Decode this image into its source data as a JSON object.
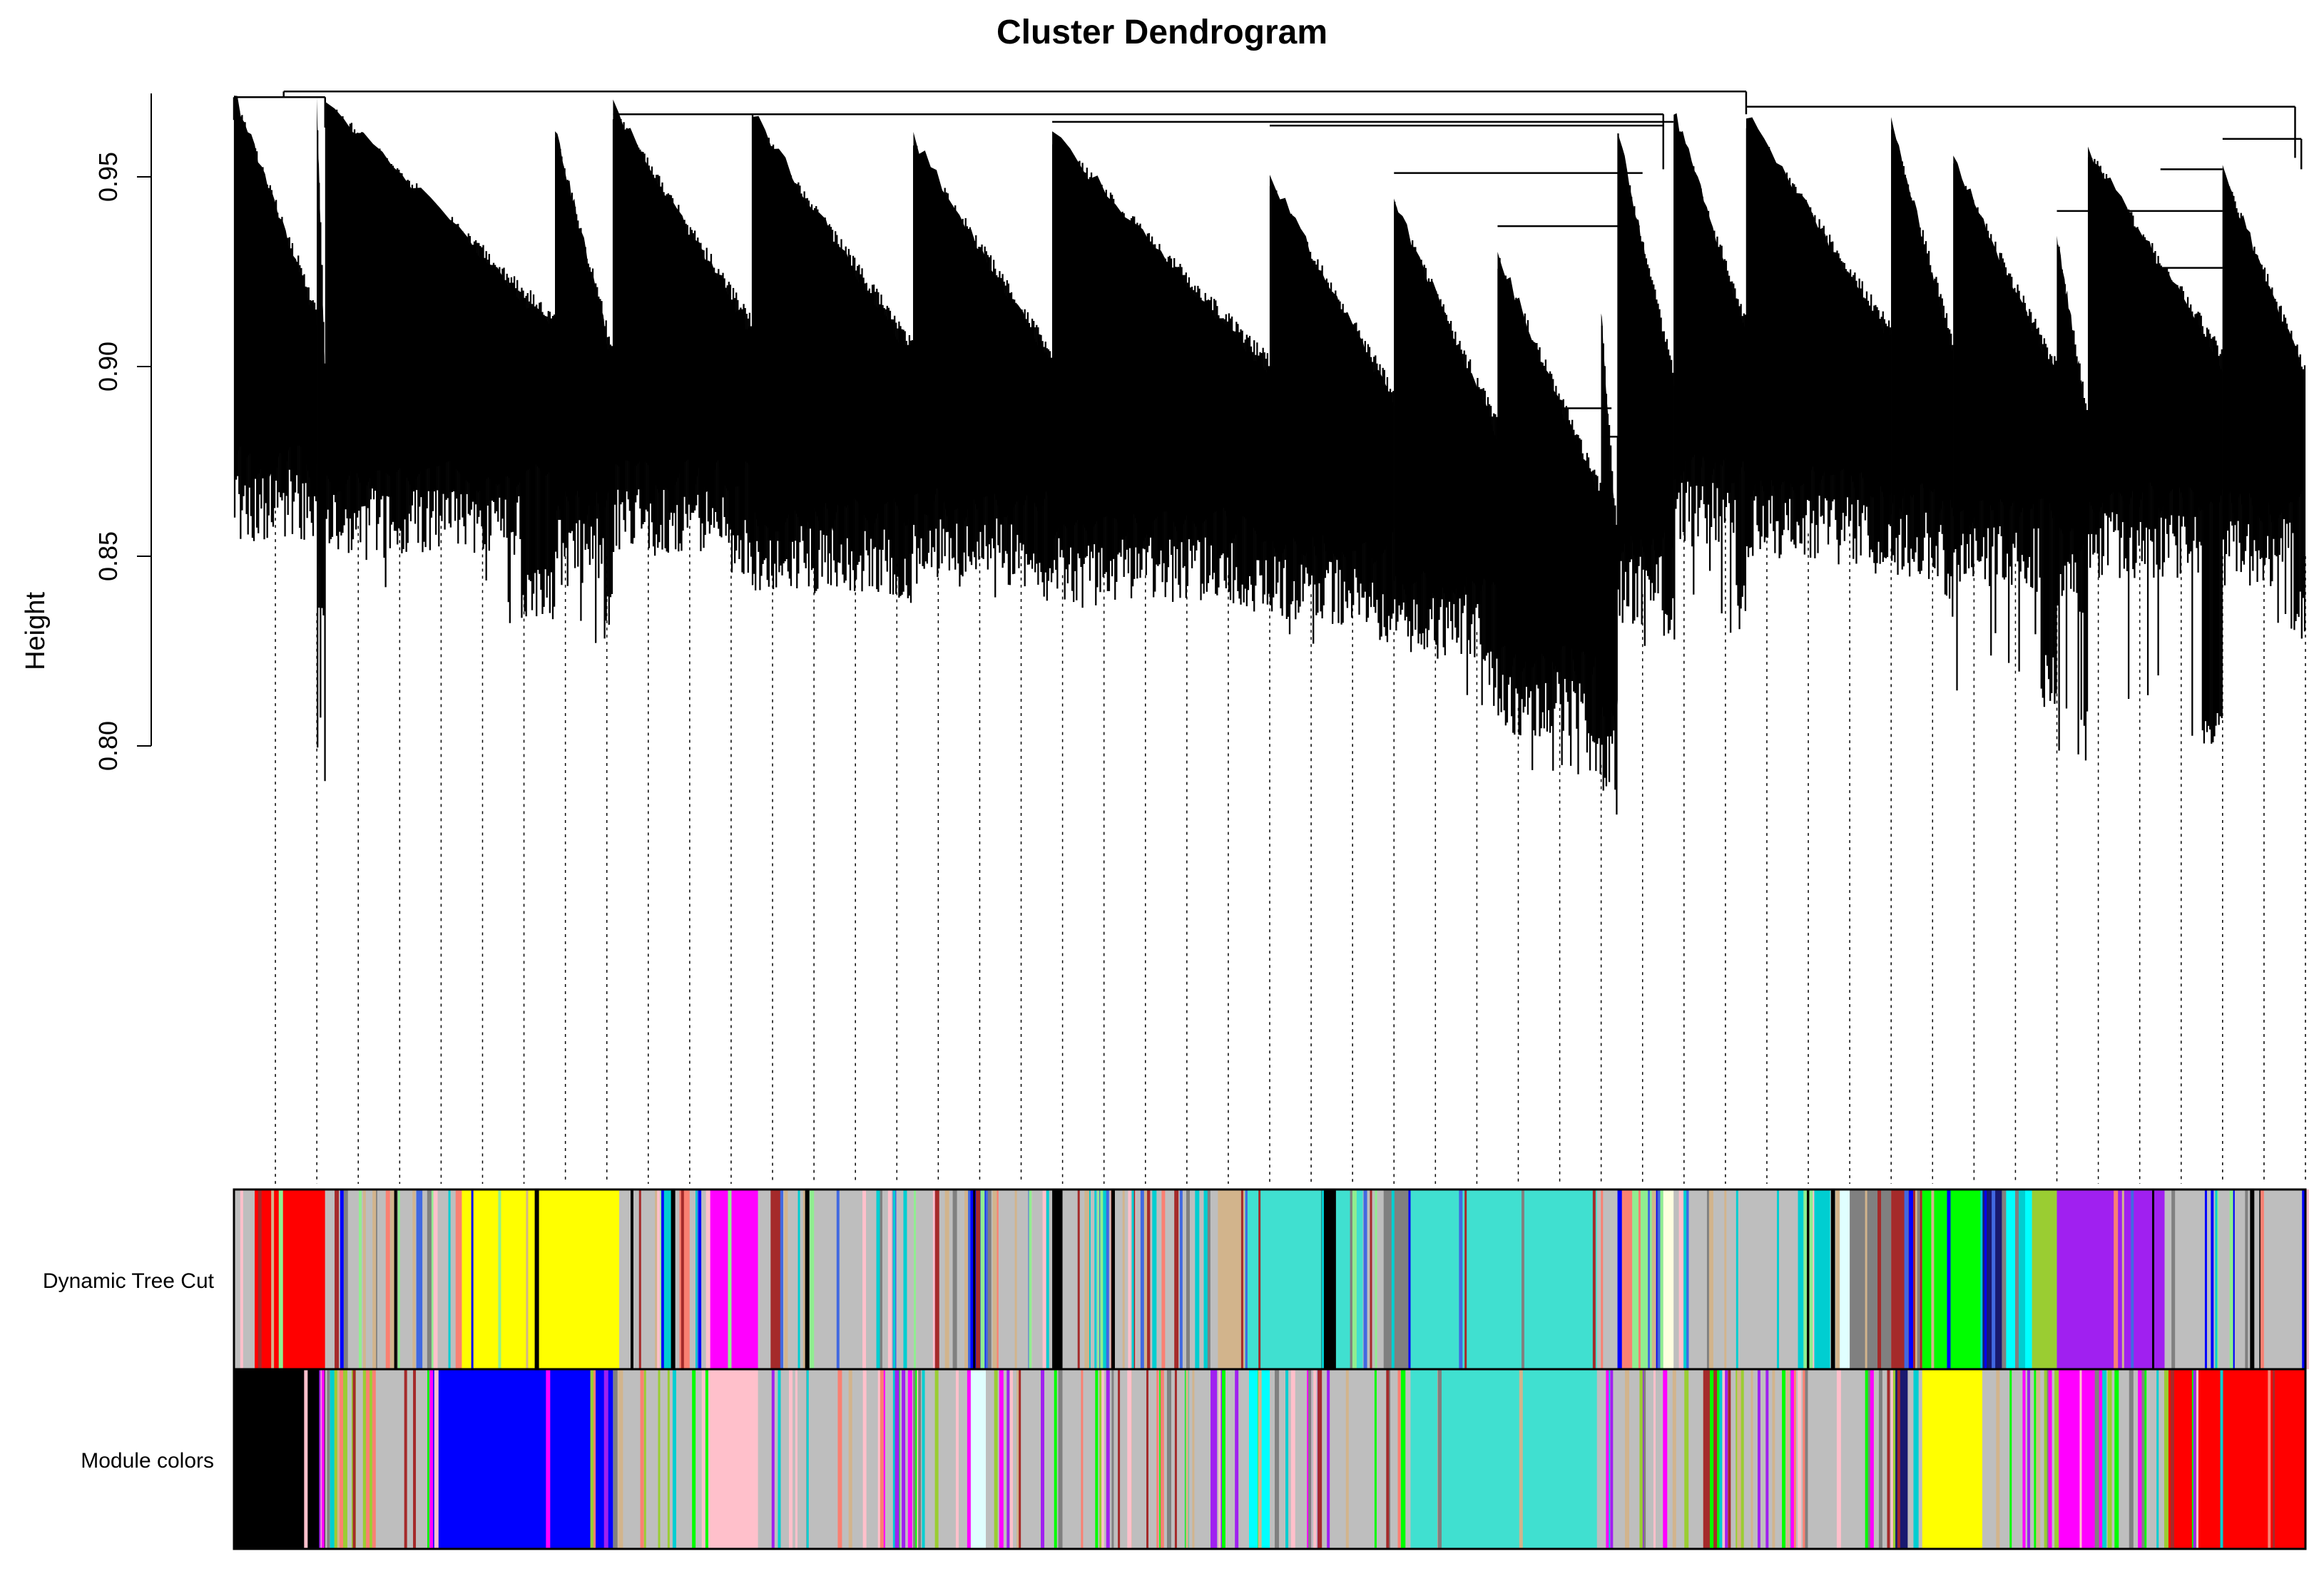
{
  "chart_data": {
    "type": "dendrogram",
    "title": "Cluster Dendrogram",
    "ylabel": "Height",
    "ylim": [
      0.775,
      0.975
    ],
    "yticks": [
      0.8,
      0.85,
      0.9,
      0.95
    ],
    "ytick_labels": [
      "0.80",
      "0.85",
      "0.90",
      "0.95"
    ],
    "grid": false,
    "color_rows": [
      {
        "label": "Dynamic Tree Cut",
        "base_color": "#bebebe",
        "segments": [
          {
            "from": 0.0,
            "to": 0.01,
            "color": "#bebebe"
          },
          {
            "from": 0.01,
            "to": 0.044,
            "color": "#ff0000"
          },
          {
            "from": 0.044,
            "to": 0.088,
            "color": "#bebebe"
          },
          {
            "from": 0.088,
            "to": 0.091,
            "color": "#4169e1"
          },
          {
            "from": 0.091,
            "to": 0.107,
            "color": "#bebebe"
          },
          {
            "from": 0.107,
            "to": 0.11,
            "color": "#fa8072"
          },
          {
            "from": 0.11,
            "to": 0.186,
            "color": "#ffff00"
          },
          {
            "from": 0.186,
            "to": 0.215,
            "color": "#bebebe"
          },
          {
            "from": 0.215,
            "to": 0.22,
            "color": "#fa8072"
          },
          {
            "from": 0.22,
            "to": 0.228,
            "color": "#bebebe"
          },
          {
            "from": 0.228,
            "to": 0.253,
            "color": "#ff00ff"
          },
          {
            "from": 0.253,
            "to": 0.355,
            "color": "#bebebe"
          },
          {
            "from": 0.355,
            "to": 0.363,
            "color": "#0000ff"
          },
          {
            "from": 0.363,
            "to": 0.395,
            "color": "#bebebe"
          },
          {
            "from": 0.395,
            "to": 0.4,
            "color": "#000000"
          },
          {
            "from": 0.4,
            "to": 0.475,
            "color": "#bebebe"
          },
          {
            "from": 0.475,
            "to": 0.488,
            "color": "#d2b48c"
          },
          {
            "from": 0.488,
            "to": 0.525,
            "color": "#40e0d0"
          },
          {
            "from": 0.525,
            "to": 0.532,
            "color": "#000000"
          },
          {
            "from": 0.532,
            "to": 0.545,
            "color": "#40e0d0"
          },
          {
            "from": 0.545,
            "to": 0.555,
            "color": "#bebebe"
          },
          {
            "from": 0.555,
            "to": 0.568,
            "color": "#808080"
          },
          {
            "from": 0.568,
            "to": 0.658,
            "color": "#40e0d0"
          },
          {
            "from": 0.658,
            "to": 0.668,
            "color": "#bebebe"
          },
          {
            "from": 0.668,
            "to": 0.675,
            "color": "#fa8072"
          },
          {
            "from": 0.675,
            "to": 0.69,
            "color": "#90ee90"
          },
          {
            "from": 0.69,
            "to": 0.695,
            "color": "#ffffe0"
          },
          {
            "from": 0.695,
            "to": 0.755,
            "color": "#bebebe"
          },
          {
            "from": 0.755,
            "to": 0.77,
            "color": "#00ced1"
          },
          {
            "from": 0.77,
            "to": 0.78,
            "color": "#e0ffff"
          },
          {
            "from": 0.78,
            "to": 0.8,
            "color": "#808080"
          },
          {
            "from": 0.8,
            "to": 0.815,
            "color": "#a52a2a"
          },
          {
            "from": 0.815,
            "to": 0.844,
            "color": "#00ff00"
          },
          {
            "from": 0.844,
            "to": 0.855,
            "color": "#191970"
          },
          {
            "from": 0.855,
            "to": 0.868,
            "color": "#00ffff"
          },
          {
            "from": 0.868,
            "to": 0.88,
            "color": "#9acd32"
          },
          {
            "from": 0.88,
            "to": 0.932,
            "color": "#a020f0"
          },
          {
            "from": 0.932,
            "to": 1.0,
            "color": "#bebebe"
          }
        ],
        "stripe_colors": [
          "#000000",
          "#fa8072",
          "#4169e1",
          "#d2b48c",
          "#808080",
          "#00ced1",
          "#90ee90",
          "#a52a2a",
          "#ffc0cb",
          "#0000ff"
        ]
      },
      {
        "label": "Module colors",
        "base_color": "#bebebe",
        "segments": [
          {
            "from": 0.0,
            "to": 0.044,
            "color": "#000000"
          },
          {
            "from": 0.044,
            "to": 0.095,
            "color": "#bebebe"
          },
          {
            "from": 0.095,
            "to": 0.183,
            "color": "#0000ff"
          },
          {
            "from": 0.183,
            "to": 0.228,
            "color": "#bebebe"
          },
          {
            "from": 0.228,
            "to": 0.253,
            "color": "#ffc0cb"
          },
          {
            "from": 0.253,
            "to": 0.355,
            "color": "#bebebe"
          },
          {
            "from": 0.355,
            "to": 0.363,
            "color": "#e0ffff"
          },
          {
            "from": 0.363,
            "to": 0.395,
            "color": "#bebebe"
          },
          {
            "from": 0.395,
            "to": 0.49,
            "color": "#bebebe"
          },
          {
            "from": 0.49,
            "to": 0.5,
            "color": "#00ffff"
          },
          {
            "from": 0.5,
            "to": 0.568,
            "color": "#bebebe"
          },
          {
            "from": 0.568,
            "to": 0.658,
            "color": "#40e0d0"
          },
          {
            "from": 0.658,
            "to": 0.71,
            "color": "#bebebe"
          },
          {
            "from": 0.71,
            "to": 0.72,
            "color": "#00ff00"
          },
          {
            "from": 0.72,
            "to": 0.8,
            "color": "#bebebe"
          },
          {
            "from": 0.8,
            "to": 0.808,
            "color": "#191970"
          },
          {
            "from": 0.808,
            "to": 0.815,
            "color": "#bebebe"
          },
          {
            "from": 0.815,
            "to": 0.844,
            "color": "#ffff00"
          },
          {
            "from": 0.844,
            "to": 0.88,
            "color": "#bebebe"
          },
          {
            "from": 0.88,
            "to": 0.902,
            "color": "#ff00ff"
          },
          {
            "from": 0.902,
            "to": 0.932,
            "color": "#bebebe"
          },
          {
            "from": 0.932,
            "to": 1.0,
            "color": "#ff0000"
          }
        ],
        "stripe_colors": [
          "#a020f0",
          "#fa8072",
          "#00ff00",
          "#a52a2a",
          "#d2b48c",
          "#808080",
          "#ff00ff",
          "#ffc0cb",
          "#9acd32",
          "#00ced1"
        ]
      }
    ]
  }
}
